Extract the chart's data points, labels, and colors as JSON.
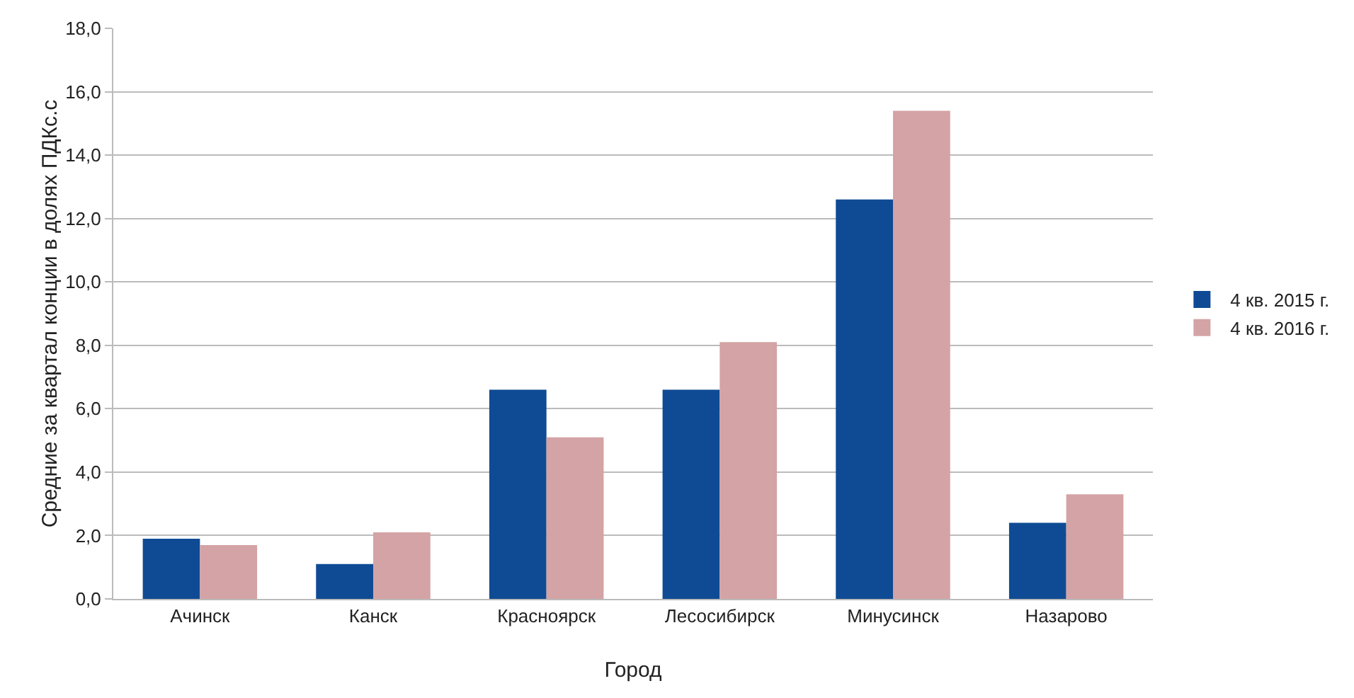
{
  "chart_data": {
    "type": "bar",
    "xlabel": "Город",
    "ylabel": "Средние за квартал конции в долях ПДКс.с",
    "categories": [
      "Ачинск",
      "Канск",
      "Красноярск",
      "Лесосибирск",
      "Минусинск",
      "Назарово"
    ],
    "series": [
      {
        "name": "4 кв. 2015 г.",
        "color": "#0f4b94",
        "values": [
          1.9,
          1.1,
          6.6,
          6.6,
          12.6,
          2.4
        ]
      },
      {
        "name": "4 кв. 2016 г.",
        "color": "#d4a3a5",
        "values": [
          1.7,
          2.1,
          5.1,
          8.1,
          15.4,
          3.3
        ]
      }
    ],
    "ylim": [
      0,
      18
    ],
    "yticks": [
      {
        "value": 0,
        "label": "0,0"
      },
      {
        "value": 2,
        "label": "2,0"
      },
      {
        "value": 4,
        "label": "4,0"
      },
      {
        "value": 6,
        "label": "6,0"
      },
      {
        "value": 8,
        "label": "8,0"
      },
      {
        "value": 10,
        "label": "10,0"
      },
      {
        "value": 12,
        "label": "12,0"
      },
      {
        "value": 14,
        "label": "14,0"
      },
      {
        "value": 16,
        "label": "16,0"
      },
      {
        "value": 18,
        "label": "18,0"
      }
    ],
    "grid": "y",
    "legend": "right"
  }
}
